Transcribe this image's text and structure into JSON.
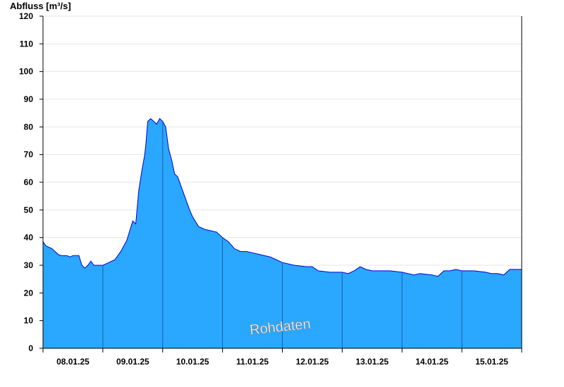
{
  "chart_data": {
    "type": "area",
    "ylabel": "Abfluss [m³/s]",
    "ylim": [
      0,
      120
    ],
    "xlim_days": [
      0,
      8
    ],
    "yticks": [
      0,
      10,
      20,
      30,
      40,
      50,
      60,
      70,
      80,
      90,
      100,
      110,
      120
    ],
    "x_labels": [
      "08.01.25",
      "09.01.25",
      "10.01.25",
      "11.01.25",
      "12.01.25",
      "13.01.25",
      "14.01.25",
      "15.01.25"
    ],
    "grid": true,
    "watermark": "Rohdaten",
    "fill_color": "#2aa7ff",
    "line_color": "#0000cc",
    "series": [
      {
        "x": [
          0,
          0.05,
          0.15,
          0.25,
          0.3,
          0.4,
          0.45,
          0.5,
          0.6,
          0.65,
          0.7,
          0.75,
          0.8,
          0.85,
          0.9,
          0.95,
          1.0,
          1.05,
          1.1,
          1.2,
          1.3,
          1.4,
          1.5,
          1.55,
          1.6,
          1.65,
          1.7,
          1.72,
          1.75,
          1.8,
          1.85,
          1.9,
          1.95,
          2.0,
          2.05,
          2.1,
          2.15,
          2.2,
          2.25,
          2.3,
          2.35,
          2.4,
          2.45,
          2.5,
          2.6,
          2.7,
          2.8,
          2.9,
          3.0,
          3.1,
          3.2,
          3.3,
          3.4,
          3.5,
          3.6,
          3.7,
          3.8,
          3.9,
          4.0,
          4.2,
          4.4,
          4.5,
          4.6,
          4.8,
          5.0,
          5.1,
          5.2,
          5.3,
          5.4,
          5.5,
          5.6,
          5.8,
          6.0,
          6.2,
          6.3,
          6.5,
          6.6,
          6.7,
          6.8,
          6.9,
          7.0,
          7.2,
          7.4,
          7.5,
          7.6,
          7.7,
          7.8,
          7.9,
          8.0
        ],
        "values": [
          38.5,
          37,
          36,
          34,
          33.5,
          33.5,
          33,
          33.5,
          33.5,
          30,
          29,
          30,
          31.5,
          30,
          30,
          30,
          30,
          30.5,
          31,
          32,
          35,
          39,
          46,
          45,
          57,
          64,
          70,
          74,
          82,
          83,
          82,
          81,
          83,
          82,
          80,
          72,
          68,
          63,
          62,
          59,
          56,
          53,
          50,
          47.5,
          44,
          43,
          42.5,
          42,
          40,
          38.5,
          36,
          35,
          35,
          34.5,
          34,
          33.5,
          33,
          32,
          31,
          30,
          29.5,
          29.5,
          28,
          27.5,
          27.5,
          27,
          28,
          29.5,
          28.5,
          28,
          28,
          28,
          27.5,
          26.5,
          27,
          26.5,
          26,
          28,
          28,
          28.5,
          28,
          28,
          27.5,
          27,
          27,
          26.5,
          28.5,
          28.5,
          28.5
        ]
      }
    ]
  }
}
